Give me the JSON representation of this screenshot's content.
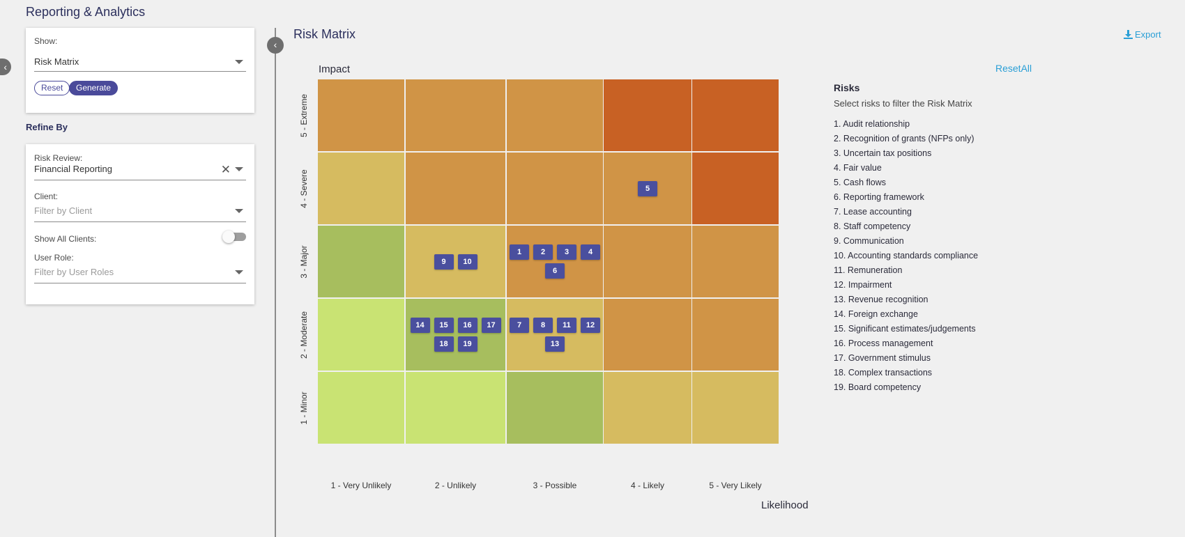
{
  "app": {
    "title": "Reporting & Analytics"
  },
  "show_panel": {
    "label": "Show:",
    "selected": "Risk Matrix",
    "reset_label": "Reset",
    "generate_label": "Generate"
  },
  "refine": {
    "title": "Refine By",
    "risk_review": {
      "label": "Risk Review:",
      "value": "Financial Reporting"
    },
    "client": {
      "label": "Client:",
      "placeholder": "Filter by Client"
    },
    "show_all_clients": {
      "label": "Show All Clients:",
      "on": false
    },
    "user_role": {
      "label": "User Role:",
      "placeholder": "Filter by User Roles"
    }
  },
  "main": {
    "title": "Risk Matrix",
    "export_label": "Export",
    "reset_all_label": "ResetAll",
    "impact_label": "Impact",
    "likelihood_label": "Likelihood"
  },
  "matrix": {
    "impact_levels": [
      "5 - Extreme",
      "4 - Severe",
      "3 - Major",
      "2 - Moderate",
      "1 - Minor"
    ],
    "likelihood_levels": [
      "1 - Very Unlikely",
      "2 - Unlikely",
      "3 - Possible",
      "4 - Likely",
      "5 - Very Likely"
    ],
    "colors": {
      "light_green": "#c9e373",
      "green": "#a7be5e",
      "yellow": "#d6bb60",
      "orange": "#d09446",
      "red": "#c86124"
    },
    "cell_colors": [
      [
        "orange",
        "orange",
        "orange",
        "red",
        "red"
      ],
      [
        "yellow",
        "orange",
        "orange",
        "orange",
        "red"
      ],
      [
        "green",
        "yellow",
        "orange",
        "orange",
        "orange"
      ],
      [
        "light_green",
        "green",
        "yellow",
        "orange",
        "orange"
      ],
      [
        "light_green",
        "light_green",
        "green",
        "yellow",
        "yellow"
      ]
    ],
    "placements": [
      {
        "impact": 4,
        "likelihood": 4,
        "risks": [
          "5"
        ]
      },
      {
        "impact": 3,
        "likelihood": 2,
        "risks": [
          "9",
          "10"
        ]
      },
      {
        "impact": 3,
        "likelihood": 3,
        "risks": [
          "1",
          "2",
          "3",
          "4",
          "6"
        ]
      },
      {
        "impact": 2,
        "likelihood": 2,
        "risks": [
          "14",
          "15",
          "16",
          "17",
          "18",
          "19"
        ]
      },
      {
        "impact": 2,
        "likelihood": 3,
        "risks": [
          "7",
          "8",
          "11",
          "12",
          "13"
        ]
      }
    ]
  },
  "risks": {
    "title": "Risks",
    "subtitle": "Select risks to filter the Risk Matrix",
    "items": [
      "1. Audit relationship",
      "2. Recognition of grants (NFPs only)",
      "3. Uncertain tax positions",
      "4. Fair value",
      "5. Cash flows",
      "6. Reporting framework",
      "7. Lease accounting",
      "8. Staff competency",
      "9. Communication",
      "10. Accounting standards compliance",
      "11. Remuneration",
      "12. Impairment",
      "13. Revenue recognition",
      "14. Foreign exchange",
      "15. Significant estimates/judgements",
      "16. Process management",
      "17. Government stimulus",
      "18. Complex transactions",
      "19. Board competency"
    ]
  }
}
